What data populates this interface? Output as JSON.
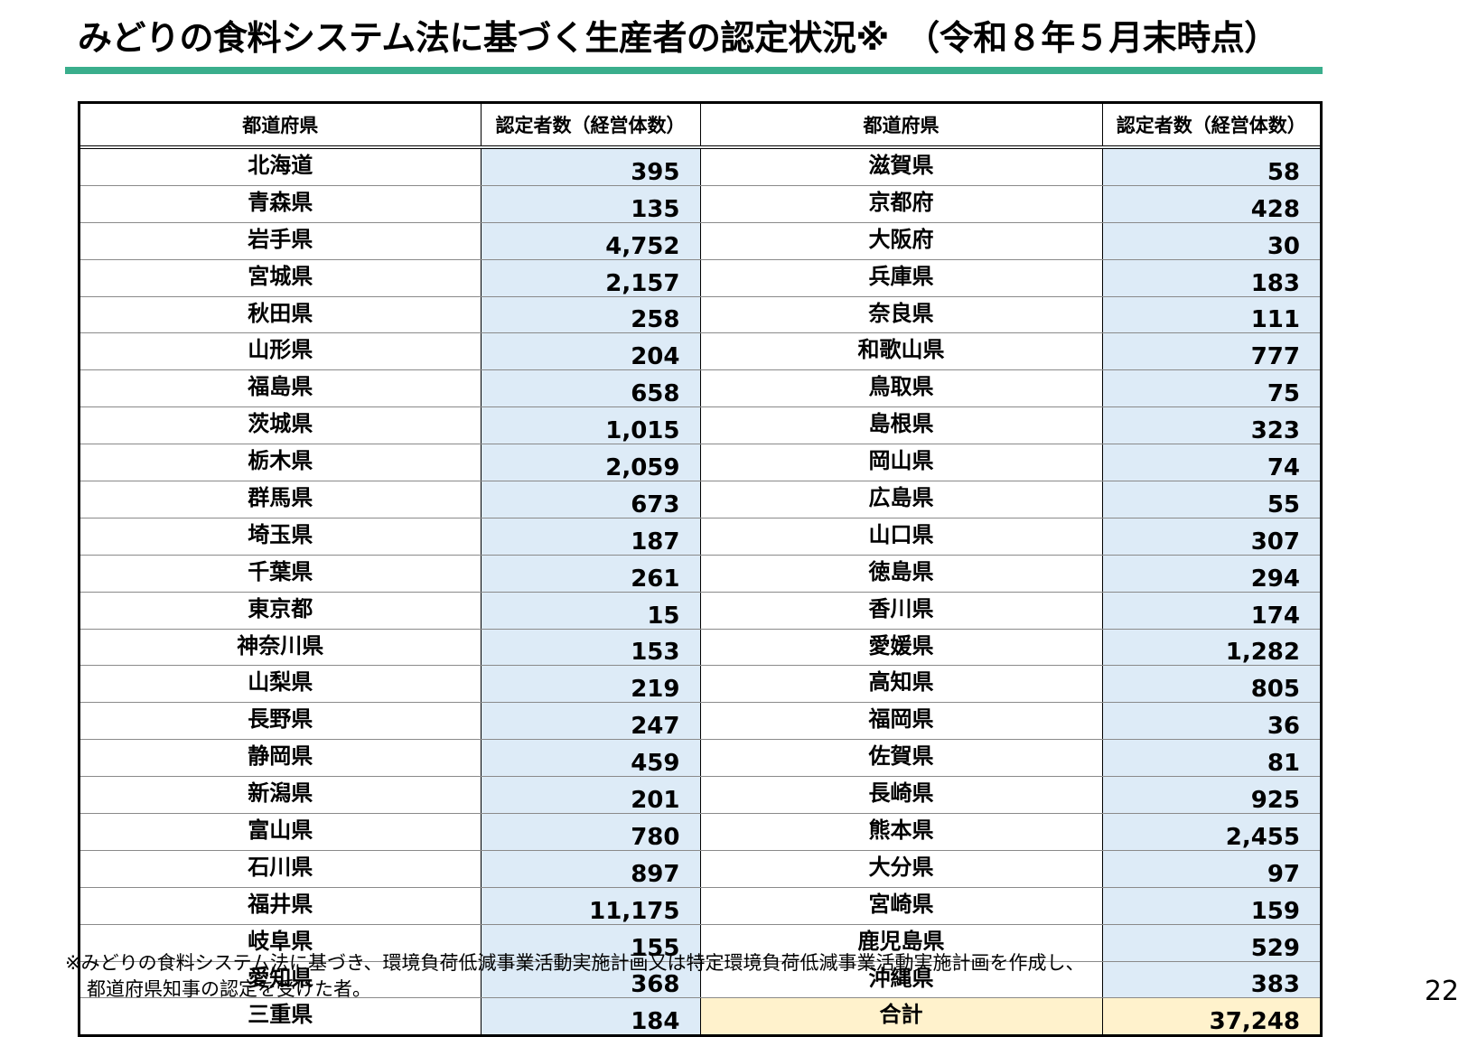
{
  "title": "みどりの食料システム法に基づく生産者の認定状況※　（令和８年５月末時点）",
  "table": {
    "headers": [
      "都道府県",
      "認定者数（経営体数）",
      "都道府県",
      "認定者数（経営体数）"
    ],
    "rows": [
      {
        "left": {
          "pref": "北海道",
          "count": "395"
        },
        "right": {
          "pref": "滋賀県",
          "count": "58"
        }
      },
      {
        "left": {
          "pref": "青森県",
          "count": "135"
        },
        "right": {
          "pref": "京都府",
          "count": "428"
        }
      },
      {
        "left": {
          "pref": "岩手県",
          "count": "4,752"
        },
        "right": {
          "pref": "大阪府",
          "count": "30"
        }
      },
      {
        "left": {
          "pref": "宮城県",
          "count": "2,157"
        },
        "right": {
          "pref": "兵庫県",
          "count": "183"
        }
      },
      {
        "left": {
          "pref": "秋田県",
          "count": "258"
        },
        "right": {
          "pref": "奈良県",
          "count": "111"
        }
      },
      {
        "left": {
          "pref": "山形県",
          "count": "204"
        },
        "right": {
          "pref": "和歌山県",
          "count": "777"
        }
      },
      {
        "left": {
          "pref": "福島県",
          "count": "658"
        },
        "right": {
          "pref": "鳥取県",
          "count": "75"
        }
      },
      {
        "left": {
          "pref": "茨城県",
          "count": "1,015"
        },
        "right": {
          "pref": "島根県",
          "count": "323"
        }
      },
      {
        "left": {
          "pref": "栃木県",
          "count": "2,059"
        },
        "right": {
          "pref": "岡山県",
          "count": "74"
        }
      },
      {
        "left": {
          "pref": "群馬県",
          "count": "673"
        },
        "right": {
          "pref": "広島県",
          "count": "55"
        }
      },
      {
        "left": {
          "pref": "埼玉県",
          "count": "187"
        },
        "right": {
          "pref": "山口県",
          "count": "307"
        }
      },
      {
        "left": {
          "pref": "千葉県",
          "count": "261"
        },
        "right": {
          "pref": "徳島県",
          "count": "294"
        }
      },
      {
        "left": {
          "pref": "東京都",
          "count": "15"
        },
        "right": {
          "pref": "香川県",
          "count": "174"
        }
      },
      {
        "left": {
          "pref": "神奈川県",
          "count": "153"
        },
        "right": {
          "pref": "愛媛県",
          "count": "1,282"
        }
      },
      {
        "left": {
          "pref": "山梨県",
          "count": "219"
        },
        "right": {
          "pref": "高知県",
          "count": "805"
        }
      },
      {
        "left": {
          "pref": "長野県",
          "count": "247"
        },
        "right": {
          "pref": "福岡県",
          "count": "36"
        }
      },
      {
        "left": {
          "pref": "静岡県",
          "count": "459"
        },
        "right": {
          "pref": "佐賀県",
          "count": "81"
        }
      },
      {
        "left": {
          "pref": "新潟県",
          "count": "201"
        },
        "right": {
          "pref": "長崎県",
          "count": "925"
        }
      },
      {
        "left": {
          "pref": "富山県",
          "count": "780"
        },
        "right": {
          "pref": "熊本県",
          "count": "2,455"
        }
      },
      {
        "left": {
          "pref": "石川県",
          "count": "897"
        },
        "right": {
          "pref": "大分県",
          "count": "97"
        }
      },
      {
        "left": {
          "pref": "福井県",
          "count": "11,175"
        },
        "right": {
          "pref": "宮崎県",
          "count": "159"
        }
      },
      {
        "left": {
          "pref": "岐阜県",
          "count": "155"
        },
        "right": {
          "pref": "鹿児島県",
          "count": "529"
        }
      },
      {
        "left": {
          "pref": "愛知県",
          "count": "368"
        },
        "right": {
          "pref": "沖縄県",
          "count": "383"
        }
      },
      {
        "left": {
          "pref": "三重県",
          "count": "184"
        },
        "right": {
          "pref": "合計",
          "count": "37,248",
          "total": true
        }
      }
    ]
  },
  "footnote": {
    "line1": "※みどりの食料システム法に基づき、環境負荷低減事業活動実施計画又は特定環境負荷低減事業活動実施計画を作成し、",
    "line2": "都道府県知事の認定を受けた者。"
  },
  "page_number": "22",
  "colors": {
    "accent_bar": "#3aae8c",
    "count_cell_bg": "#ddebf7",
    "total_cell_bg": "#fff2cc"
  }
}
